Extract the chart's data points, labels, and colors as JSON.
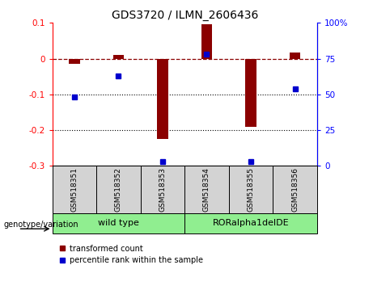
{
  "title": "GDS3720 / ILMN_2606436",
  "samples": [
    "GSM518351",
    "GSM518352",
    "GSM518353",
    "GSM518354",
    "GSM518355",
    "GSM518356"
  ],
  "bar_values": [
    -0.015,
    0.01,
    -0.225,
    0.097,
    -0.19,
    0.018
  ],
  "dot_values": [
    48,
    63,
    3,
    78,
    3,
    54
  ],
  "ylim_left": [
    -0.3,
    0.1
  ],
  "bar_color": "#8B0000",
  "dot_color": "#0000CD",
  "dotted_lines": [
    -0.1,
    -0.2
  ],
  "right_tick_vals": [
    0,
    25,
    50,
    75,
    100
  ],
  "right_tick_labels": [
    "0",
    "25",
    "50",
    "75",
    "100%"
  ],
  "left_tick_vals": [
    -0.3,
    -0.2,
    -0.1,
    0.0,
    0.1
  ],
  "left_tick_labels": [
    "-0.3",
    "-0.2",
    "-0.1",
    "0",
    "0.1"
  ],
  "group_label": "genotype/variation",
  "wt_label": "wild type",
  "ror_label": "RORalpha1delDE",
  "legend_labels": [
    "transformed count",
    "percentile rank within the sample"
  ],
  "sample_bg": "#d3d3d3",
  "group_bg": "#90EE90",
  "title_fontsize": 10
}
